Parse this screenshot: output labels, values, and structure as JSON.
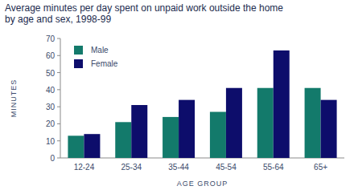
{
  "chart_data": {
    "type": "bar",
    "title": "Average minutes per day spent on unpaid work outside the home",
    "subtitle": "by age and sex, 1998-99",
    "x_label": "AGE GROUP",
    "y_label": "MINUTES",
    "categories": [
      "12-24",
      "25-34",
      "35-44",
      "45-54",
      "55-64",
      "65+"
    ],
    "series": [
      {
        "name": "Male",
        "color": "#137a6b",
        "values": [
          13,
          21,
          24,
          27,
          41,
          41
        ]
      },
      {
        "name": "Female",
        "color": "#0d0d6b",
        "values": [
          14,
          31,
          34,
          41,
          63,
          34
        ]
      }
    ],
    "ylim": [
      0,
      70
    ],
    "yticks": [
      0,
      10,
      20,
      30,
      40,
      50,
      60,
      70
    ],
    "grid": false,
    "legend": "top-left"
  }
}
